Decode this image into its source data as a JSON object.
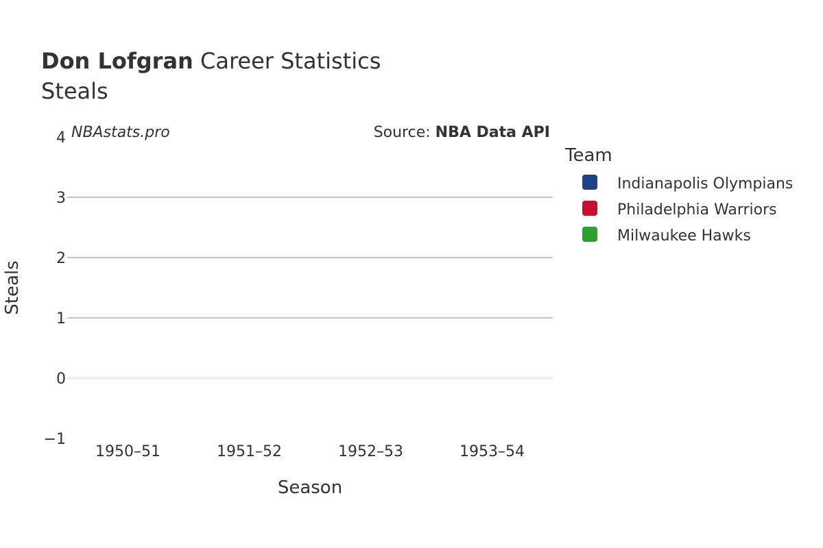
{
  "header": {
    "player_name": "Don Lofgran",
    "title_rest": "Career Statistics",
    "subtitle": "Steals"
  },
  "watermark": "NBAstats.pro",
  "source": {
    "prefix": "Source: ",
    "name": "NBA Data API"
  },
  "chart_data": {
    "type": "scatter",
    "title": "Don Lofgran Career Statistics",
    "subtitle": "Steals",
    "xlabel": "Season",
    "ylabel": "Steals",
    "categories": [
      "1950–51",
      "1951–52",
      "1952–53",
      "1953–54"
    ],
    "ylim": [
      -1,
      4
    ],
    "yticks": [
      -1,
      0,
      1,
      2,
      3,
      4
    ],
    "ytick_labels": [
      "−1",
      "0",
      "1",
      "2",
      "3",
      "4"
    ],
    "grid": true,
    "legend": {
      "title": "Team",
      "placement": "right"
    },
    "series": [
      {
        "name": "Indianapolis Olympians",
        "color": "#1d428a",
        "values": []
      },
      {
        "name": "Philadelphia Warriors",
        "color": "#c8102e",
        "values": []
      },
      {
        "name": "Milwaukee Hawks",
        "color": "#2ca02c",
        "values": []
      }
    ]
  }
}
